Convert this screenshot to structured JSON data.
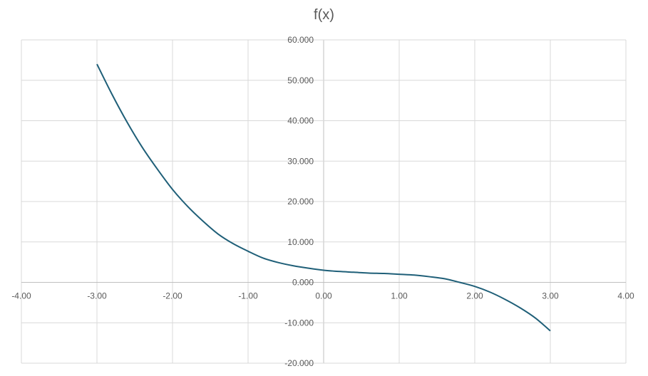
{
  "chart_data": {
    "type": "scatter",
    "title": "f(x)",
    "xlabel": "",
    "ylabel": "",
    "xlim": [
      -4,
      4
    ],
    "ylim": [
      -20,
      60
    ],
    "x_ticks": [
      -4,
      -3,
      -2,
      -1,
      0,
      1,
      2,
      3,
      4
    ],
    "x_tick_labels": [
      "-4.00",
      "-3.00",
      "-2.00",
      "-1.00",
      "0.00",
      "1.00",
      "2.00",
      "3.00",
      "4.00"
    ],
    "y_ticks": [
      -20,
      -10,
      0,
      10,
      20,
      30,
      40,
      50,
      60
    ],
    "y_tick_labels": [
      "-20.000",
      "-10.000",
      "0.000",
      "10.000",
      "20.000",
      "30.000",
      "40.000",
      "50.000",
      "60.000"
    ],
    "grid": true,
    "legend": "none",
    "series": [
      {
        "color": "#1f5f78",
        "x": [
          -3.0,
          -2.8,
          -2.6,
          -2.4,
          -2.2,
          -2.0,
          -1.8,
          -1.6,
          -1.4,
          -1.2,
          -1.0,
          -0.8,
          -0.6,
          -0.4,
          -0.2,
          0.0,
          0.2,
          0.4,
          0.6,
          0.8,
          1.0,
          1.2,
          1.4,
          1.6,
          1.8,
          2.0,
          2.2,
          2.4,
          2.6,
          2.8,
          3.0
        ],
        "y": [
          54.0,
          46.5,
          39.6,
          33.4,
          28.0,
          23.0,
          18.8,
          15.2,
          12.0,
          9.6,
          7.7,
          6.0,
          4.9,
          4.1,
          3.5,
          3.0,
          2.7,
          2.5,
          2.3,
          2.2,
          2.0,
          1.8,
          1.4,
          0.9,
          0.0,
          -1.0,
          -2.4,
          -4.2,
          -6.3,
          -8.8,
          -12.0
        ]
      }
    ]
  }
}
